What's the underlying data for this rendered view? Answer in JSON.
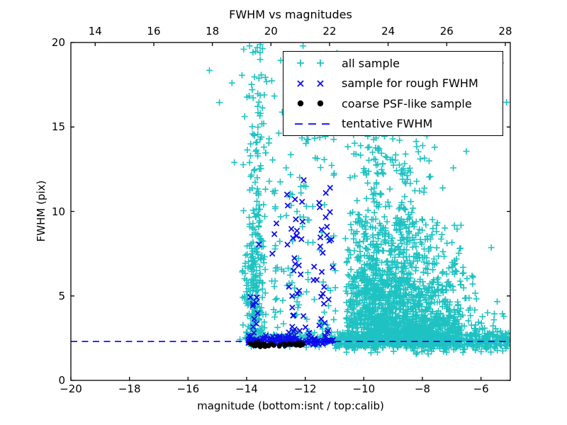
{
  "chart_data": {
    "type": "scatter",
    "title": "FWHM vs magnitudes",
    "xlabel": "magnitude (bottom:isnt / top:calib)",
    "ylabel": "FWHM (pix)",
    "xlim": [
      -20,
      -5
    ],
    "ylim": [
      0,
      20
    ],
    "x_ticks_bottom": [
      -20,
      -18,
      -16,
      -14,
      -12,
      -10,
      -8,
      -6
    ],
    "x_ticks_top": [
      14,
      16,
      18,
      20,
      22,
      24,
      26,
      28
    ],
    "top_axis_offset": 33.17,
    "y_ticks": [
      0,
      5,
      10,
      15,
      20
    ],
    "grid": false,
    "legend_position": "upper right",
    "tentative_fwhm_line": {
      "label": "tentative FWHM",
      "y": 2.3,
      "color": "#0000ff",
      "style": "dashed"
    },
    "legend": {
      "items": [
        {
          "label": "all sample",
          "marker": "plus",
          "color": "#1fc2c2"
        },
        {
          "label": "sample for rough FWHM",
          "marker": "x",
          "color": "#0f0fe8"
        },
        {
          "label": "coarse PSF-like sample",
          "marker": "dot",
          "color": "#000000"
        },
        {
          "label": "tentative FWHM",
          "marker": "dash",
          "color": "#0000ff"
        }
      ]
    },
    "series": [
      {
        "name": "all sample",
        "marker": "plus",
        "color": "#1fc2c2",
        "clusters": [
          {
            "n": 185,
            "x": {
              "dist": "gauss",
              "mu": -13.72,
              "sigma": 0.18,
              "min": -14.28,
              "max": -13.12
            },
            "y": {
              "dist": "powlow",
              "base": 2.4,
              "range": 7.5,
              "exp": 1.7
            }
          },
          {
            "n": 95,
            "x": {
              "dist": "gauss",
              "mu": -13.7,
              "sigma": 0.21,
              "min": -14.3,
              "max": -13.05
            },
            "y": {
              "dist": "powlow",
              "base": 5.5,
              "range": 11.5,
              "exp": 1.5
            }
          },
          {
            "n": 16,
            "x": {
              "dist": "gauss",
              "mu": -13.6,
              "sigma": 0.3,
              "min": -14.3,
              "max": -12.9
            },
            "y": {
              "dist": "uniform",
              "min": 16.5,
              "max": 19.8
            }
          },
          {
            "n": 120,
            "x": {
              "dist": "uniform",
              "min": -13.15,
              "max": -10.95
            },
            "y": {
              "dist": "powlow",
              "base": 2.6,
              "range": 12.5,
              "exp": 1.6
            }
          },
          {
            "n": 650,
            "x": {
              "dist": "gauss",
              "mu": -9.65,
              "sigma": 0.6,
              "min": -10.65,
              "max": -8.0
            },
            "y": {
              "dist": "halfnorm",
              "base": 2.05,
              "scale": 2.9,
              "max": 9.5
            }
          },
          {
            "n": 600,
            "x": {
              "dist": "gauss",
              "mu": -8.0,
              "sigma": 0.95,
              "min": -10.0,
              "max": -5.05
            },
            "y": {
              "dist": "halfnorm",
              "base": 2.0,
              "scale": 1.9,
              "max": 8.0
            }
          },
          {
            "n": 420,
            "x": {
              "dist": "gauss",
              "mu": -8.8,
              "sigma": 1.15,
              "min": -10.6,
              "max": -5.05
            },
            "y": {
              "dist": "powlow",
              "base": 2.2,
              "range": 7.5,
              "exp": 1.2
            }
          },
          {
            "n": 230,
            "x": {
              "dist": "gauss",
              "mu": -9.3,
              "sigma": 1.0,
              "min": -10.5,
              "max": -5.1
            },
            "y": {
              "dist": "powlow",
              "base": 5.0,
              "range": 12.0,
              "exp": 1.6
            }
          },
          {
            "n": 40,
            "x": {
              "dist": "gauss",
              "mu": -9.55,
              "sigma": 0.15,
              "min": -10.0,
              "max": -9.1
            },
            "y": {
              "dist": "uniform",
              "min": 8.0,
              "max": 14.5
            }
          },
          {
            "n": 30,
            "x": {
              "dist": "gauss",
              "mu": -8.55,
              "sigma": 0.2,
              "min": -9.0,
              "max": -8.1
            },
            "y": {
              "dist": "uniform",
              "min": 8.0,
              "max": 13.0
            }
          },
          {
            "n": 620,
            "x": {
              "dist": "uniform",
              "min": -11.0,
              "max": -5.03
            },
            "y": {
              "dist": "gauss",
              "mu": 2.35,
              "sigma": 0.33,
              "min": 1.55,
              "max": 3.5
            }
          },
          {
            "n": 70,
            "x": {
              "dist": "uniform",
              "min": -14.2,
              "max": -5.1
            },
            "y": {
              "dist": "uniform",
              "min": 13.0,
              "max": 19.9
            }
          },
          {
            "n": 60,
            "x": {
              "dist": "uniform",
              "min": -14.05,
              "max": -11.0
            },
            "y": {
              "dist": "gauss",
              "mu": 2.4,
              "sigma": 0.3,
              "min": 1.9,
              "max": 3.3
            }
          }
        ],
        "points": [
          [
            -15.27,
            18.35
          ],
          [
            -14.93,
            16.45
          ],
          [
            -14.5,
            17.6
          ],
          [
            -14.42,
            12.9
          ],
          [
            -14.1,
            19.6
          ],
          [
            -13.9,
            19.8
          ]
        ]
      },
      {
        "name": "sample for rough FWHM",
        "marker": "x",
        "color": "#0f0fe8",
        "clusters": [
          {
            "n": 140,
            "x": {
              "dist": "uniform",
              "min": -13.95,
              "max": -11.05
            },
            "y": {
              "dist": "gauss",
              "mu": 2.35,
              "sigma": 0.16,
              "min": 2.05,
              "max": 2.75
            }
          },
          {
            "n": 10,
            "x": {
              "dist": "gauss",
              "mu": -13.72,
              "sigma": 0.07,
              "min": -13.9,
              "max": -13.5
            },
            "y": {
              "dist": "powlow",
              "base": 2.8,
              "range": 3.0,
              "exp": 1.2
            }
          },
          {
            "n": 24,
            "x": {
              "dist": "gauss",
              "mu": -12.33,
              "sigma": 0.14,
              "min": -12.7,
              "max": -12.0
            },
            "y": {
              "dist": "powlow",
              "base": 2.8,
              "range": 9.0,
              "exp": 1.25
            }
          },
          {
            "n": 22,
            "x": {
              "dist": "gauss",
              "mu": -11.33,
              "sigma": 0.12,
              "min": -11.6,
              "max": -11.05
            },
            "y": {
              "dist": "powlow",
              "base": 2.8,
              "range": 8.7,
              "exp": 1.25
            }
          },
          {
            "n": 16,
            "x": {
              "dist": "uniform",
              "min": -13.5,
              "max": -10.95
            },
            "y": {
              "dist": "powlow",
              "base": 2.8,
              "range": 7.0,
              "exp": 1.4
            }
          }
        ],
        "points": [
          [
            -13.58,
            8.05
          ],
          [
            -12.62,
            11.0
          ],
          [
            -12.6,
            10.35
          ],
          [
            -12.05,
            11.85
          ],
          [
            -11.15,
            11.4
          ]
        ]
      },
      {
        "name": "coarse PSF-like sample",
        "marker": "dot",
        "color": "#000000",
        "clusters": [
          {
            "n": 26,
            "x": {
              "dist": "uniform",
              "min": -13.92,
              "max": -12.85
            },
            "y": {
              "dist": "gauss",
              "mu": 2.1,
              "sigma": 0.07,
              "min": 1.95,
              "max": 2.28
            }
          },
          {
            "n": 18,
            "x": {
              "dist": "uniform",
              "min": -12.8,
              "max": -12.05
            },
            "y": {
              "dist": "gauss",
              "mu": 2.12,
              "sigma": 0.07,
              "min": 1.95,
              "max": 2.28
            }
          }
        ],
        "points": []
      }
    ]
  }
}
